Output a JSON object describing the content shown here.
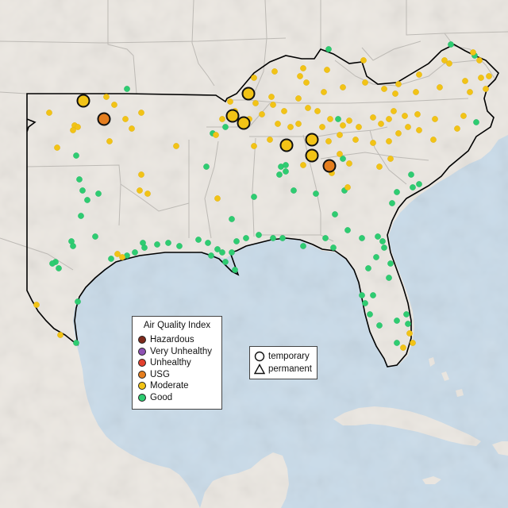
{
  "legend": {
    "title": "Air Quality Index",
    "categories": [
      {
        "label": "Hazardous",
        "color": "#7e2a1c"
      },
      {
        "label": "Very Unhealthy",
        "color": "#8e52b4"
      },
      {
        "label": "Unhealthy",
        "color": "#e2402d"
      },
      {
        "label": "USG",
        "color": "#e57e1f"
      },
      {
        "label": "Moderate",
        "color": "#f2c316"
      },
      {
        "label": "Good",
        "color": "#2ecc71"
      }
    ]
  },
  "site_legend": {
    "temporary": "temporary",
    "permanent": "permanent"
  },
  "colors": {
    "water": "#c9dbe9",
    "land": "#ece8e2",
    "border": "#000000"
  }
}
